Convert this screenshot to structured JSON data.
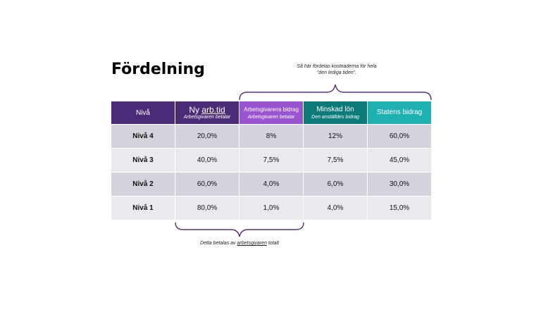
{
  "title": "Fördelning",
  "top_note": {
    "line1": "Så här fördelas kostnaderna för hela",
    "line2": "”den lediga tiden”."
  },
  "bottom_note": {
    "before": "Detta betalas av ",
    "underlined": "arbetsgivaren",
    "after": " totalt"
  },
  "headers": {
    "level": "Nivå",
    "new_hours": {
      "main_prefix": "Ny ",
      "main_underlined": "arb.tid",
      "sub": "Arbetsgivaren betalar"
    },
    "employer_contribution": {
      "main": "Arbetsgivarens bidrag",
      "sub": "Arbetsgivaren betalar"
    },
    "reduced_pay": {
      "main": "Minskad lön",
      "sub": "Den anställdes bidrag"
    },
    "state_contribution": {
      "main": "Statens bidrag"
    }
  },
  "rows": [
    {
      "level": "Nivå 4",
      "new_hours": "20,0%",
      "employer": "8%",
      "reduced": "12%",
      "state": "60,0%"
    },
    {
      "level": "Nivå 3",
      "new_hours": "40,0%",
      "employer": "7,5%",
      "reduced": "7,5%",
      "state": "45,0%"
    },
    {
      "level": "Nivå 2",
      "new_hours": "60,0%",
      "employer": "4,0%",
      "reduced": "6,0%",
      "state": "30,0%"
    },
    {
      "level": "Nivå 1",
      "new_hours": "80,0%",
      "employer": "1,0%",
      "reduced": "4,0%",
      "state": "15,0%"
    }
  ],
  "colors": {
    "header_dark_purple": "#4b2a78",
    "header_light_purple": "#9b54cf",
    "header_dark_teal": "#0d7a7a",
    "header_light_teal": "#1fb1b1",
    "row_dark": "#d4d2da",
    "row_light": "#eae9ee",
    "brace": "#5b2c82"
  }
}
